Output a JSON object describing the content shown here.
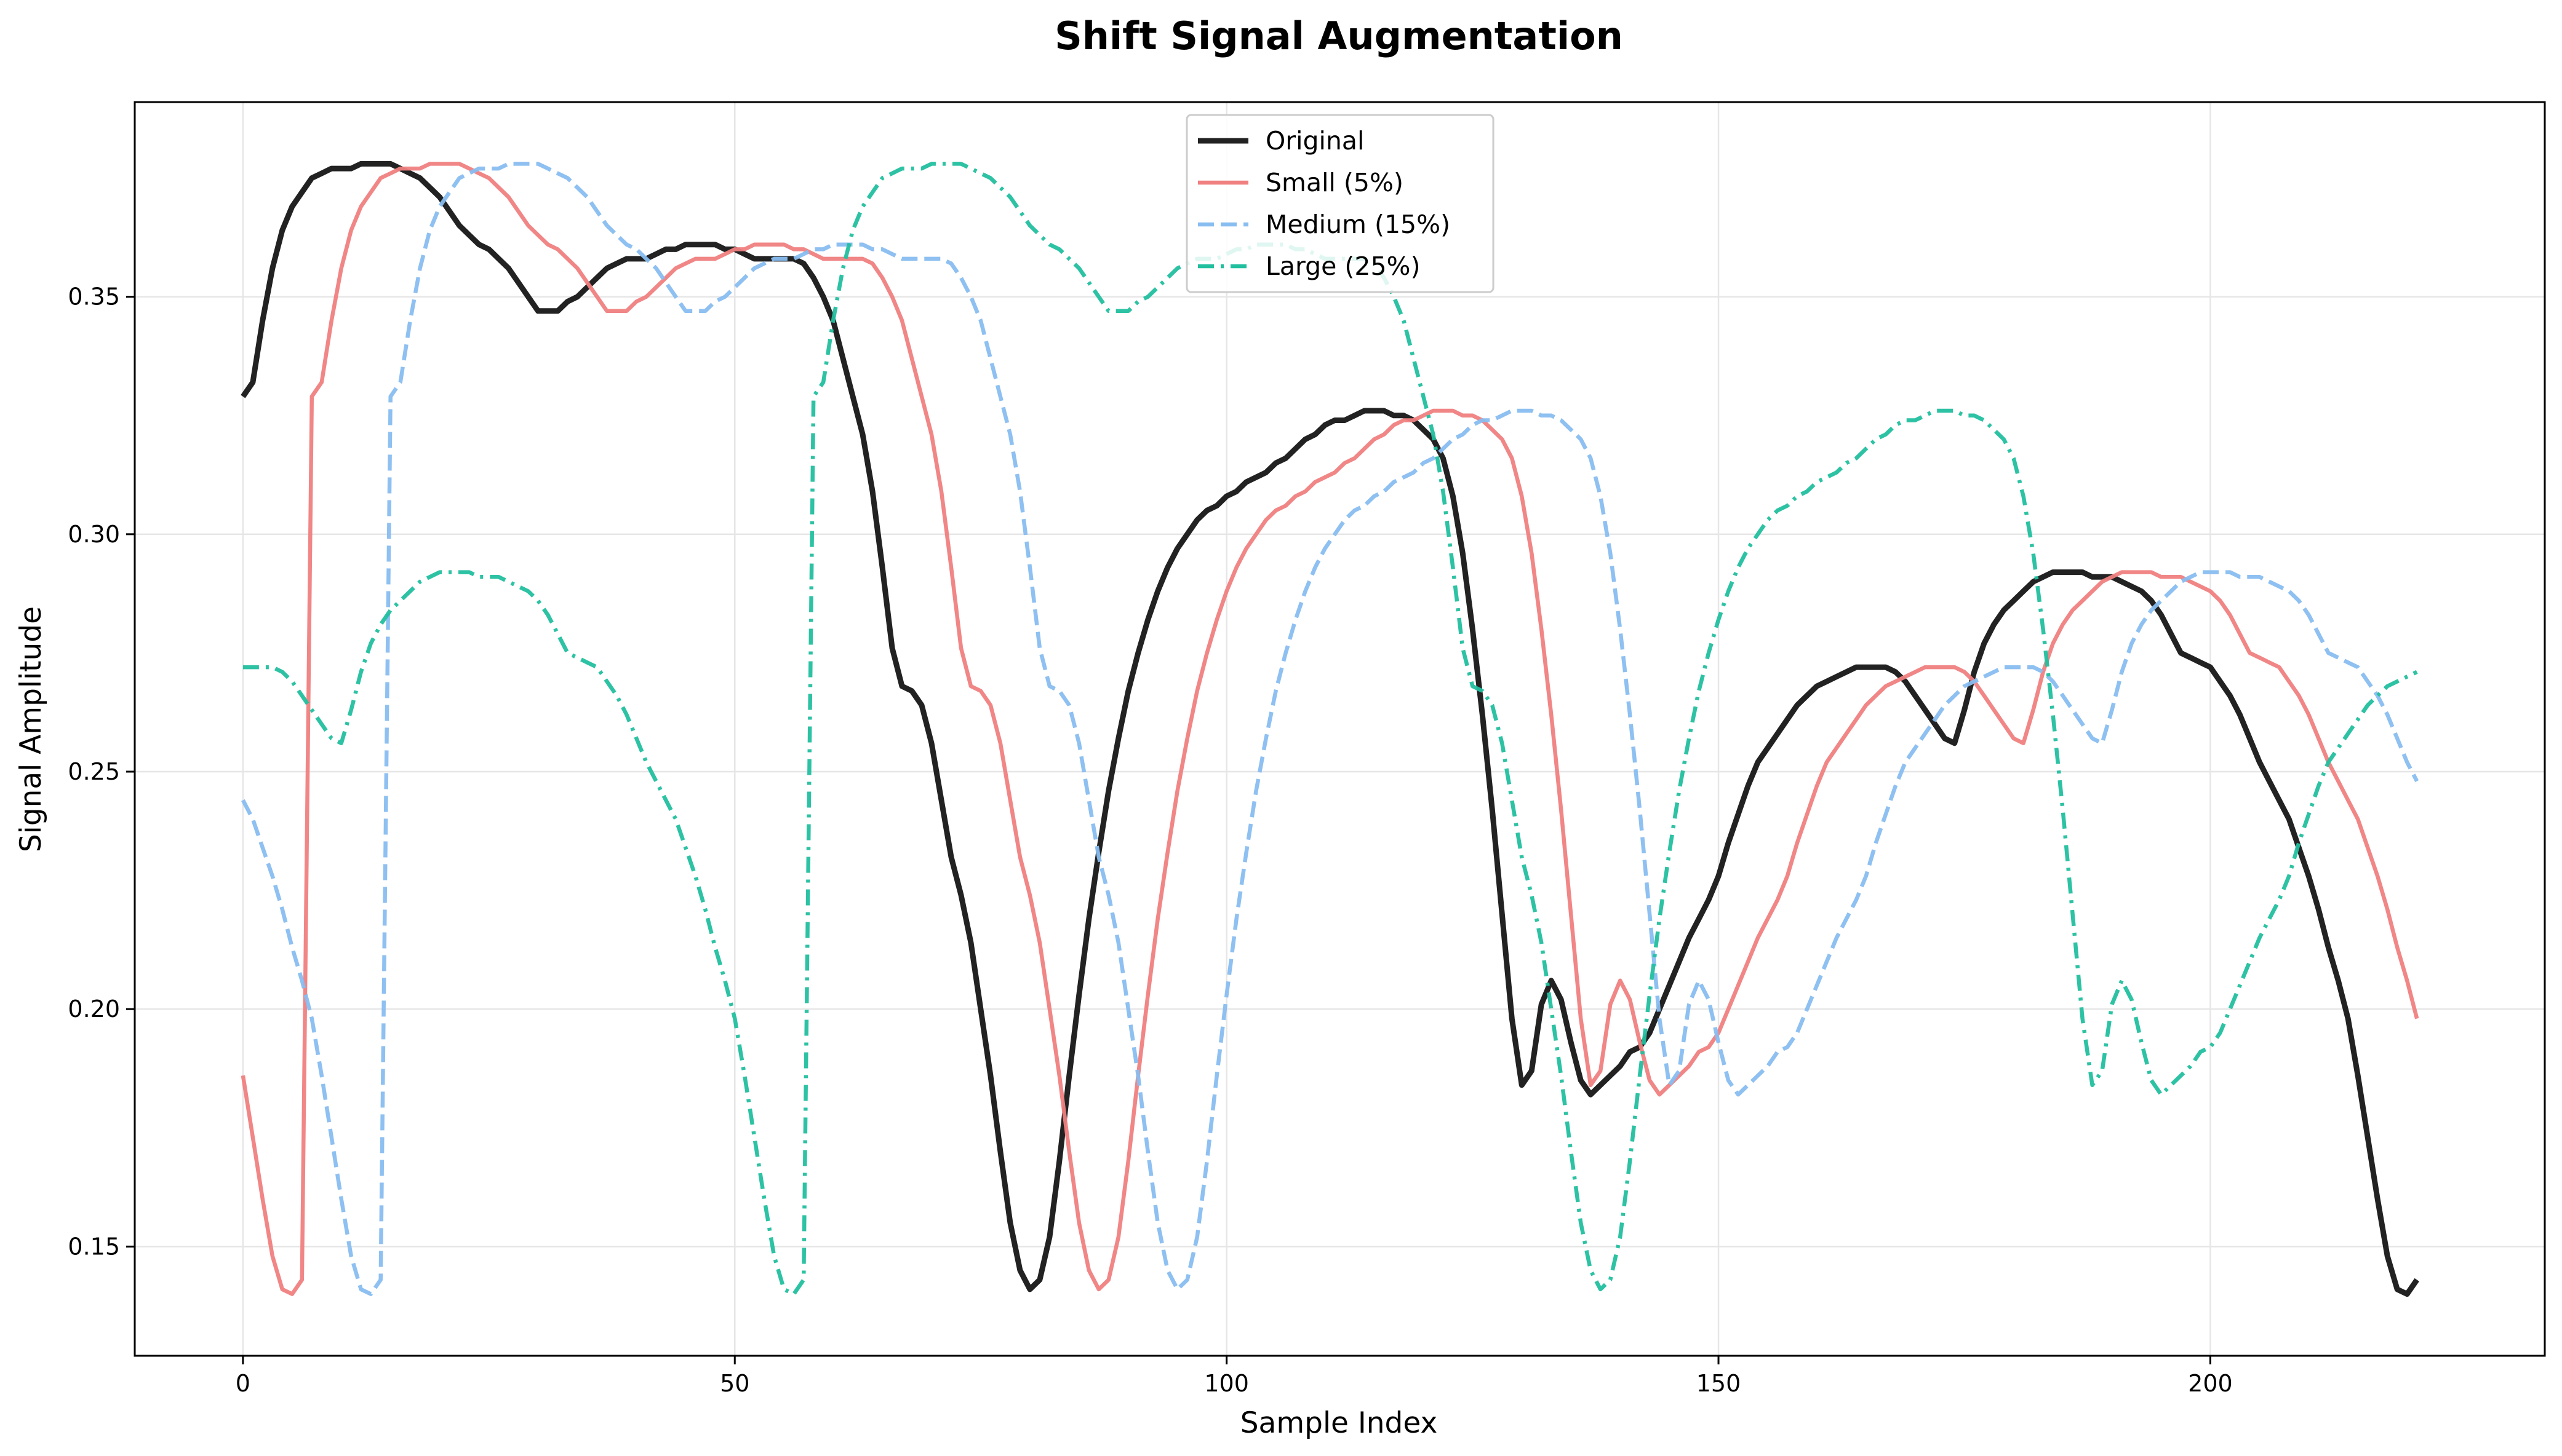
{
  "chart_data": {
    "type": "line",
    "title": "Shift Signal Augmentation",
    "xlabel": "Sample Index",
    "ylabel": "Signal Amplitude",
    "xlim": [
      -11,
      234
    ],
    "ylim": [
      0.127,
      0.391
    ],
    "xticks": [
      0,
      50,
      100,
      150,
      200
    ],
    "yticks": [
      0.15,
      0.2,
      0.25,
      0.3,
      0.35
    ],
    "ytick_labels": [
      "0.15",
      "0.20",
      "0.25",
      "0.30",
      "0.35"
    ],
    "grid": true,
    "legend_position": "top-center",
    "base_signal": [
      [
        0,
        0.329
      ],
      [
        1,
        0.332
      ],
      [
        2,
        0.345
      ],
      [
        3,
        0.356
      ],
      [
        4,
        0.364
      ],
      [
        5,
        0.369
      ],
      [
        6,
        0.372
      ],
      [
        7,
        0.375
      ],
      [
        8,
        0.376
      ],
      [
        9,
        0.377
      ],
      [
        10,
        0.377
      ],
      [
        11,
        0.377
      ],
      [
        12,
        0.378
      ],
      [
        13,
        0.378
      ],
      [
        14,
        0.378
      ],
      [
        15,
        0.378
      ],
      [
        16,
        0.377
      ],
      [
        17,
        0.376
      ],
      [
        18,
        0.375
      ],
      [
        19,
        0.373
      ],
      [
        20,
        0.371
      ],
      [
        21,
        0.368
      ],
      [
        22,
        0.365
      ],
      [
        23,
        0.363
      ],
      [
        24,
        0.361
      ],
      [
        25,
        0.36
      ],
      [
        26,
        0.358
      ],
      [
        27,
        0.356
      ],
      [
        28,
        0.353
      ],
      [
        29,
        0.35
      ],
      [
        30,
        0.347
      ],
      [
        31,
        0.347
      ],
      [
        32,
        0.347
      ],
      [
        33,
        0.349
      ],
      [
        34,
        0.35
      ],
      [
        35,
        0.352
      ],
      [
        36,
        0.354
      ],
      [
        37,
        0.356
      ],
      [
        38,
        0.357
      ],
      [
        39,
        0.358
      ],
      [
        40,
        0.358
      ],
      [
        41,
        0.358
      ],
      [
        42,
        0.359
      ],
      [
        43,
        0.36
      ],
      [
        44,
        0.36
      ],
      [
        45,
        0.361
      ],
      [
        46,
        0.361
      ],
      [
        47,
        0.361
      ],
      [
        48,
        0.361
      ],
      [
        49,
        0.36
      ],
      [
        50,
        0.36
      ],
      [
        51,
        0.359
      ],
      [
        52,
        0.358
      ],
      [
        53,
        0.358
      ],
      [
        54,
        0.358
      ],
      [
        55,
        0.358
      ],
      [
        56,
        0.358
      ],
      [
        57,
        0.357
      ],
      [
        58,
        0.354
      ],
      [
        59,
        0.35
      ],
      [
        60,
        0.345
      ],
      [
        61,
        0.337
      ],
      [
        62,
        0.329
      ],
      [
        63,
        0.321
      ],
      [
        64,
        0.309
      ],
      [
        65,
        0.293
      ],
      [
        66,
        0.276
      ],
      [
        67,
        0.268
      ],
      [
        68,
        0.267
      ],
      [
        69,
        0.264
      ],
      [
        70,
        0.256
      ],
      [
        71,
        0.244
      ],
      [
        72,
        0.232
      ],
      [
        73,
        0.224
      ],
      [
        74,
        0.214
      ],
      [
        75,
        0.2
      ],
      [
        76,
        0.186
      ],
      [
        77,
        0.17
      ],
      [
        78,
        0.155
      ],
      [
        79,
        0.145
      ],
      [
        80,
        0.141
      ],
      [
        81,
        0.143
      ],
      [
        82,
        0.152
      ],
      [
        83,
        0.168
      ],
      [
        84,
        0.186
      ],
      [
        85,
        0.203
      ],
      [
        86,
        0.219
      ],
      [
        87,
        0.233
      ],
      [
        88,
        0.246
      ],
      [
        89,
        0.257
      ],
      [
        90,
        0.267
      ],
      [
        91,
        0.275
      ],
      [
        92,
        0.282
      ],
      [
        93,
        0.288
      ],
      [
        94,
        0.293
      ],
      [
        95,
        0.297
      ],
      [
        96,
        0.3
      ],
      [
        97,
        0.303
      ],
      [
        98,
        0.305
      ],
      [
        99,
        0.306
      ],
      [
        100,
        0.308
      ],
      [
        101,
        0.309
      ],
      [
        102,
        0.311
      ],
      [
        103,
        0.312
      ],
      [
        104,
        0.313
      ],
      [
        105,
        0.315
      ],
      [
        106,
        0.316
      ],
      [
        107,
        0.318
      ],
      [
        108,
        0.32
      ],
      [
        109,
        0.321
      ],
      [
        110,
        0.323
      ],
      [
        111,
        0.324
      ],
      [
        112,
        0.324
      ],
      [
        113,
        0.325
      ],
      [
        114,
        0.326
      ],
      [
        115,
        0.326
      ],
      [
        116,
        0.326
      ],
      [
        117,
        0.325
      ],
      [
        118,
        0.325
      ],
      [
        119,
        0.324
      ],
      [
        120,
        0.322
      ],
      [
        121,
        0.32
      ],
      [
        122,
        0.316
      ],
      [
        123,
        0.308
      ],
      [
        124,
        0.296
      ],
      [
        125,
        0.28
      ],
      [
        126,
        0.262
      ],
      [
        127,
        0.242
      ],
      [
        128,
        0.22
      ],
      [
        129,
        0.198
      ],
      [
        130,
        0.184
      ],
      [
        131,
        0.187
      ],
      [
        132,
        0.201
      ],
      [
        133,
        0.206
      ],
      [
        134,
        0.202
      ],
      [
        135,
        0.193
      ],
      [
        136,
        0.185
      ],
      [
        137,
        0.182
      ],
      [
        138,
        0.184
      ],
      [
        139,
        0.186
      ],
      [
        140,
        0.188
      ],
      [
        141,
        0.191
      ],
      [
        142,
        0.192
      ],
      [
        143,
        0.195
      ],
      [
        144,
        0.2
      ],
      [
        145,
        0.205
      ],
      [
        146,
        0.21
      ],
      [
        147,
        0.215
      ],
      [
        148,
        0.219
      ],
      [
        149,
        0.223
      ],
      [
        150,
        0.228
      ],
      [
        151,
        0.235
      ],
      [
        152,
        0.241
      ],
      [
        153,
        0.247
      ],
      [
        154,
        0.252
      ],
      [
        155,
        0.255
      ],
      [
        156,
        0.258
      ],
      [
        157,
        0.261
      ],
      [
        158,
        0.264
      ],
      [
        159,
        0.266
      ],
      [
        160,
        0.268
      ],
      [
        161,
        0.269
      ],
      [
        162,
        0.27
      ],
      [
        163,
        0.271
      ],
      [
        164,
        0.272
      ],
      [
        165,
        0.272
      ],
      [
        166,
        0.272
      ],
      [
        167,
        0.272
      ],
      [
        168,
        0.271
      ],
      [
        169,
        0.269
      ],
      [
        170,
        0.266
      ],
      [
        171,
        0.263
      ],
      [
        172,
        0.26
      ],
      [
        173,
        0.257
      ],
      [
        174,
        0.256
      ],
      [
        175,
        0.263
      ],
      [
        176,
        0.271
      ],
      [
        177,
        0.277
      ],
      [
        178,
        0.281
      ],
      [
        179,
        0.284
      ],
      [
        180,
        0.286
      ],
      [
        181,
        0.288
      ],
      [
        182,
        0.29
      ],
      [
        183,
        0.291
      ],
      [
        184,
        0.292
      ],
      [
        185,
        0.292
      ],
      [
        186,
        0.292
      ],
      [
        187,
        0.292
      ],
      [
        188,
        0.291
      ],
      [
        189,
        0.291
      ],
      [
        190,
        0.291
      ],
      [
        191,
        0.29
      ],
      [
        192,
        0.289
      ],
      [
        193,
        0.288
      ],
      [
        194,
        0.286
      ],
      [
        195,
        0.283
      ],
      [
        196,
        0.279
      ],
      [
        197,
        0.275
      ],
      [
        198,
        0.274
      ],
      [
        199,
        0.273
      ],
      [
        200,
        0.272
      ],
      [
        201,
        0.269
      ],
      [
        202,
        0.266
      ],
      [
        203,
        0.262
      ],
      [
        204,
        0.257
      ],
      [
        205,
        0.252
      ],
      [
        206,
        0.248
      ],
      [
        207,
        0.244
      ],
      [
        208,
        0.24
      ],
      [
        209,
        0.234
      ],
      [
        210,
        0.228
      ],
      [
        211,
        0.221
      ],
      [
        212,
        0.213
      ],
      [
        213,
        0.206
      ],
      [
        214,
        0.198
      ],
      [
        215,
        0.186
      ],
      [
        216,
        0.173
      ],
      [
        217,
        0.16
      ],
      [
        218,
        0.148
      ],
      [
        219,
        0.141
      ],
      [
        220,
        0.14
      ],
      [
        221,
        0.143
      ]
    ],
    "series": [
      {
        "name": "Original",
        "shift": 0,
        "color": "#222222",
        "dash": "solid"
      },
      {
        "name": "Small (5%)",
        "shift": 7,
        "color": "#f08080",
        "dash": "solid"
      },
      {
        "name": "Medium (15%)",
        "shift": 15,
        "color": "#88bdf0",
        "dash": "dashed"
      },
      {
        "name": "Large (25%)",
        "shift": 58,
        "color": "#22bf9f",
        "dash": "dashdot"
      }
    ]
  }
}
